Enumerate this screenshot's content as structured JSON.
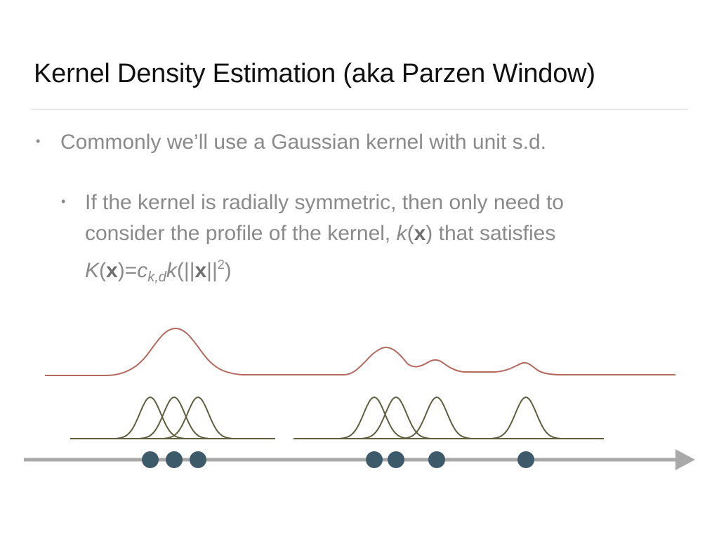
{
  "slide": {
    "title": "Kernel Density Estimation (aka Parzen Window)",
    "bullet1": "Commonly we’ll use a Gaussian kernel with unit s.d.",
    "bullet2": {
      "line1": "If the kernel is radially symmetric, then only need to",
      "line2_prefix": "consider the profile of the kernel, ",
      "line2_k": "k",
      "line2_open": "(",
      "line2_x": "x",
      "line2_suffix": ") that satisfies",
      "line3_K": "K",
      "line3_open": "(",
      "line3_x": "x",
      "line3_eq": ")=",
      "line3_c": "c",
      "line3_sub": "k,d",
      "line3_k": "k",
      "line3_norm_open": "(||",
      "line3_x2": "x",
      "line3_norm_close": "||",
      "line3_sup": "2",
      "line3_close": ")"
    }
  },
  "diagram": {
    "colors": {
      "density": "#b5695e",
      "kernel": "#5f5f3f",
      "axis": "#a9a9a9",
      "point": "#3d5a6b"
    },
    "sample_points": [
      214,
      248,
      282,
      533,
      564,
      622,
      749
    ]
  }
}
